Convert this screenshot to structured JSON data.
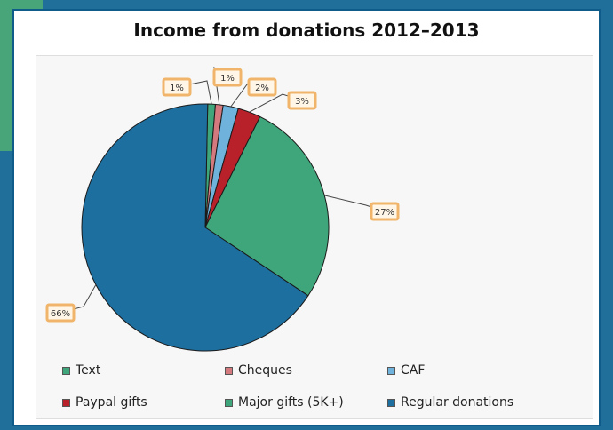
{
  "chart_data": {
    "type": "pie",
    "title": "Income from donations 2012–2013",
    "slices": [
      {
        "name": "Text",
        "value": 1,
        "label": "1%",
        "color": "#3fa57a"
      },
      {
        "name": "Cheques",
        "value": 1,
        "label": "1%",
        "color": "#d47a7e"
      },
      {
        "name": "CAF",
        "value": 2,
        "label": "2%",
        "color": "#6fb2dc"
      },
      {
        "name": "Paypal gifts",
        "value": 3,
        "label": "3%",
        "color": "#b8202a"
      },
      {
        "name": "Major gifts (5K+)",
        "value": 27,
        "label": "27%",
        "color": "#3fa57a"
      },
      {
        "name": "Regular donations",
        "value": 66,
        "label": "66%",
        "color": "#1d6fa0"
      }
    ],
    "legend_position": "bottom"
  }
}
